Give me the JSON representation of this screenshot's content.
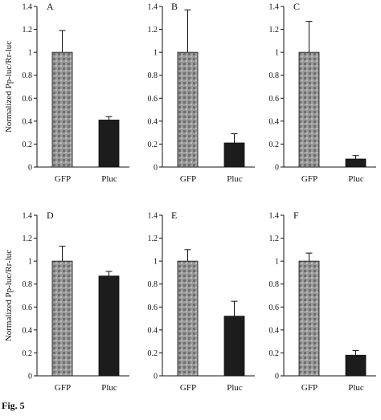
{
  "chart_data": [
    {
      "panel": "A",
      "type": "bar",
      "categories": [
        "GFP",
        "Pluc"
      ],
      "values": [
        1.0,
        0.41
      ],
      "errors": [
        0.19,
        0.03
      ],
      "ylabel": "Normalized Pp-luc/Rr-luc",
      "ylim": [
        0,
        1.4
      ],
      "yticks": [
        "0",
        "0.2",
        "0.4",
        "0.6",
        "0.8",
        "1",
        "1.2",
        "1.4"
      ]
    },
    {
      "panel": "B",
      "type": "bar",
      "categories": [
        "GFP",
        "Pluc"
      ],
      "values": [
        1.0,
        0.21
      ],
      "errors": [
        0.37,
        0.08
      ],
      "ylabel": "",
      "ylim": [
        0,
        1.4
      ],
      "yticks": [
        "0",
        "0.2",
        "0.4",
        "0.6",
        "0.8",
        "1",
        "1.2",
        "1.4"
      ]
    },
    {
      "panel": "C",
      "type": "bar",
      "categories": [
        "GFP",
        "Pluc"
      ],
      "values": [
        1.0,
        0.07
      ],
      "errors": [
        0.27,
        0.03
      ],
      "ylabel": "",
      "ylim": [
        0,
        1.4
      ],
      "yticks": [
        "0",
        "0.2",
        "0.4",
        "0.6",
        "0.8",
        "1",
        "1.2",
        "1.4"
      ]
    },
    {
      "panel": "D",
      "type": "bar",
      "categories": [
        "GFP",
        "Pluc"
      ],
      "values": [
        1.0,
        0.87
      ],
      "errors": [
        0.13,
        0.04
      ],
      "ylabel": "Normalized Pp-luc/Rr-luc",
      "ylim": [
        0,
        1.4
      ],
      "yticks": [
        "0",
        "0.2",
        "0.4",
        "0.6",
        "0.8",
        "1",
        "1.2",
        "1.4"
      ]
    },
    {
      "panel": "E",
      "type": "bar",
      "categories": [
        "GFP",
        "Pluc"
      ],
      "values": [
        1.0,
        0.52
      ],
      "errors": [
        0.1,
        0.13
      ],
      "ylabel": "",
      "ylim": [
        0,
        1.4
      ],
      "yticks": [
        "0",
        "0.2",
        "0.4",
        "0.6",
        "0.8",
        "1",
        "1.2",
        "1.4"
      ]
    },
    {
      "panel": "F",
      "type": "bar",
      "categories": [
        "GFP",
        "Pluc"
      ],
      "values": [
        1.0,
        0.18
      ],
      "errors": [
        0.07,
        0.04
      ],
      "ylabel": "",
      "ylim": [
        0,
        1.4
      ],
      "yticks": [
        "0",
        "0.2",
        "0.4",
        "0.6",
        "0.8",
        "1",
        "1.2",
        "1.4"
      ]
    }
  ],
  "colors": {
    "gfp_bar": "#8a8a8a",
    "pluc_bar": "#1c1c1c",
    "axis": "#111111"
  },
  "caption": "Fig. 5"
}
